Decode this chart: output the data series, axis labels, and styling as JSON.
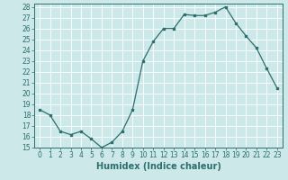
{
  "x": [
    0,
    1,
    2,
    3,
    4,
    5,
    6,
    7,
    8,
    9,
    10,
    11,
    12,
    13,
    14,
    15,
    16,
    17,
    18,
    19,
    20,
    21,
    22,
    23
  ],
  "y": [
    18.5,
    18.0,
    16.5,
    16.2,
    16.5,
    15.8,
    15.0,
    15.5,
    16.5,
    18.5,
    23.0,
    24.8,
    26.0,
    26.0,
    27.3,
    27.2,
    27.2,
    27.5,
    28.0,
    26.5,
    25.3,
    24.2,
    22.3,
    20.5
  ],
  "xlabel": "Humidex (Indice chaleur)",
  "ylim": [
    15,
    28
  ],
  "xlim_min": -0.5,
  "xlim_max": 23.5,
  "yticks": [
    15,
    16,
    17,
    18,
    19,
    20,
    21,
    22,
    23,
    24,
    25,
    26,
    27,
    28
  ],
  "xticks": [
    0,
    1,
    2,
    3,
    4,
    5,
    6,
    7,
    8,
    9,
    10,
    11,
    12,
    13,
    14,
    15,
    16,
    17,
    18,
    19,
    20,
    21,
    22,
    23
  ],
  "line_color": "#2d6e6e",
  "marker": "s",
  "marker_size": 2.0,
  "bg_color": "#cce8e8",
  "grid_color": "#ffffff",
  "label_fontsize": 7.0,
  "tick_fontsize": 5.5
}
